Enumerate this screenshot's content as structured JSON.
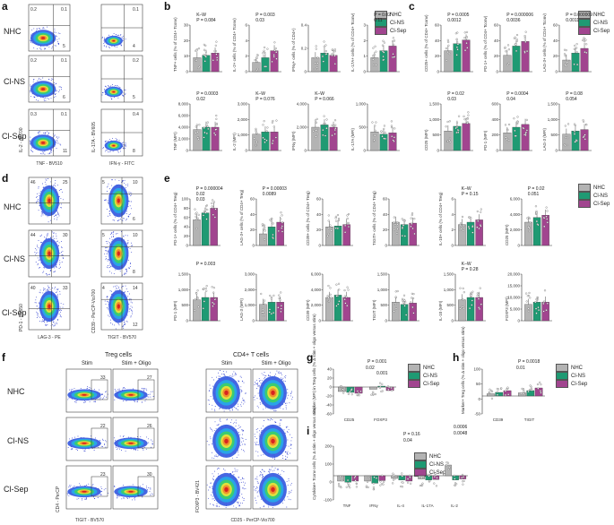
{
  "colors": {
    "nhc": "#b3b3b3",
    "clns": "#1f9a73",
    "clsep": "#a1458f"
  },
  "groups": [
    "NHC",
    "Cl-NS",
    "Cl-Sep"
  ],
  "panel_letters": [
    "a",
    "b",
    "c",
    "d",
    "e",
    "f",
    "g",
    "h",
    "i"
  ],
  "panel_a": {
    "rows": [
      "NHC",
      "Cl-NS",
      "Cl-Sep"
    ],
    "xlabel1": "TNF - BV510",
    "xlabel2": "IFN-γ - FITC",
    "ylabel1": "IL-2 - AF700",
    "ylabel2": "IL-17A - BV605",
    "quads": [
      [
        "0.2",
        "0.1",
        "5",
        "0.4"
      ],
      [
        "0.2",
        "0.1",
        "6",
        "0.1"
      ],
      [
        "0.3",
        "0.1",
        "11",
        "0.2"
      ]
    ],
    "quads2": [
      [
        "4",
        "0.1"
      ],
      [
        "5",
        "0.2"
      ],
      [
        "8",
        "0.4"
      ]
    ]
  },
  "panel_b": {
    "top": [
      {
        "ylabel": "TNF+ cells (% of CD4+ Tconv)",
        "stats": [
          "K–W",
          "P = 0.084"
        ],
        "ticks": [
          "30",
          "20",
          "10",
          "0"
        ]
      },
      {
        "ylabel": "IL-2+ cells (% of CD4+ Tconv)",
        "stats": [
          "P = 0.003",
          "0.03"
        ],
        "ticks": [
          "6",
          "4",
          "2",
          "0"
        ]
      },
      {
        "ylabel": "IFNγ+ cells (% of CD4+)",
        "stats": [],
        "ticks": [
          "0.4",
          "0.2",
          "0"
        ]
      },
      {
        "ylabel": "IL-17A+ cells (% of CD4+ Tconv)",
        "stats": [
          "P = 0.02",
          "0.11"
        ],
        "ticks": [
          "3",
          "2",
          "1",
          "0"
        ]
      }
    ],
    "bottom": [
      {
        "ylabel": "TNF (MFI)",
        "stats": [
          "P = 0.0003",
          "0.02"
        ],
        "ticks": [
          "8,000",
          "6,000",
          "4,000",
          "2,000",
          "0"
        ]
      },
      {
        "ylabel": "IL-2 (MFI)",
        "stats": [
          "K–W",
          "P = 0.076"
        ],
        "ticks": [
          "3,000",
          "2,000",
          "1,000",
          "0"
        ]
      },
      {
        "ylabel": "IFNγ (MFI)",
        "stats": [
          "K–W",
          "P = 0.066"
        ],
        "ticks": [
          "4,000",
          "2,000",
          "0"
        ]
      },
      {
        "ylabel": "IL-17A (MFI)",
        "stats": [],
        "ticks": [
          "1,000",
          "500",
          "0"
        ]
      }
    ]
  },
  "panel_c": {
    "top": [
      {
        "ylabel": "CD25+ cells (% of CD4+ Tconv)",
        "stats": [
          "P = 0.0005",
          "0.0012"
        ],
        "ticks": [
          "60",
          "40",
          "20",
          "0"
        ]
      },
      {
        "ylabel": "PD-1+ cells (% of CD4+ Tconv)",
        "stats": [
          "P = 0.000006",
          "0.0036"
        ],
        "ticks": [
          "60",
          "40",
          "20",
          "0"
        ]
      },
      {
        "ylabel": "LAG-3+ cells (% of CD4+ Tconv)",
        "stats": [
          "P = 0.000009",
          "0.0011"
        ],
        "ticks": [
          "60",
          "40",
          "20",
          "0"
        ]
      }
    ],
    "bottom": [
      {
        "ylabel": "CD25 (MFI)",
        "stats": [
          "P = 0.02",
          "0.03"
        ],
        "ticks": [
          "1,500",
          "1,000",
          "500",
          "0"
        ]
      },
      {
        "ylabel": "PD-1 (MFI)",
        "stats": [
          "P = 0.0004",
          "0.04"
        ],
        "ticks": [
          "600",
          "400",
          "200",
          "0"
        ]
      },
      {
        "ylabel": "LAG-3 (MFI)",
        "stats": [
          "P = 0.08",
          "0.054"
        ],
        "ticks": [
          "1,500",
          "1,000",
          "500",
          "0"
        ]
      }
    ]
  },
  "panel_d": {
    "rows": [
      "NHC",
      "Cl-NS",
      "Cl-Sep"
    ],
    "xlabel1": "LAG-3 - PE",
    "xlabel2": "TIGIT - BV570",
    "ylabel1": "PD-1 - BV650",
    "ylabel2": "CD39 - PerCP-Vio700",
    "quads": [
      [
        "46",
        "25"
      ],
      [
        "44",
        "30"
      ],
      [
        "40",
        "33"
      ]
    ],
    "quads2": [
      [
        "5",
        "10",
        "6"
      ],
      [
        "5",
        "10",
        "8"
      ],
      [
        "4",
        "14",
        "12"
      ]
    ]
  },
  "panel_e": {
    "top": [
      {
        "ylabel": "PD-1+ cells (% of CD4+ Treg)",
        "stats": [
          "P = 0.000004",
          "0.02",
          "0.03"
        ],
        "ticks": [
          "100",
          "80",
          "60",
          "40",
          "20",
          "0"
        ]
      },
      {
        "ylabel": "LAG-3+ cells (% of CD4+ Treg)",
        "stats": [
          "P = 0.00003",
          "0.0089"
        ],
        "ticks": [
          "60",
          "40",
          "20",
          "0"
        ]
      },
      {
        "ylabel": "CD39+ cells (% of CD4+ Treg)",
        "stats": [],
        "ticks": [
          "60",
          "40",
          "20",
          "0"
        ]
      },
      {
        "ylabel": "TIGIT+ cells (% of CD4+ Treg)",
        "stats": [],
        "ticks": [
          "60",
          "40",
          "20",
          "0"
        ]
      },
      {
        "ylabel": "IL-10+ cells (% of CD4+ Treg)",
        "stats": [
          "K–W",
          "P = 0.15"
        ],
        "ticks": [
          "6",
          "4",
          "2",
          "0"
        ]
      },
      {
        "ylabel": "CD25 (MFI)",
        "stats": [
          "P = 0.02",
          "0.051"
        ],
        "ticks": [
          "6,000",
          "4,000",
          "2,000",
          "0"
        ]
      }
    ],
    "bottom": [
      {
        "ylabel": "PD-1 (MFI)",
        "stats": [
          "P = 0.003"
        ],
        "ticks": [
          "1,500",
          "1,000",
          "500",
          "0"
        ]
      },
      {
        "ylabel": "LAG-3 (MFI)",
        "stats": [],
        "ticks": [
          "3,000",
          "2,000",
          "1,000",
          "0"
        ]
      },
      {
        "ylabel": "CD39 (MFI)",
        "stats": [],
        "ticks": [
          "6,000",
          "4,000",
          "2,000",
          "0"
        ]
      },
      {
        "ylabel": "TIGIT (MFI)",
        "stats": [],
        "ticks": [
          "1,500",
          "1,000",
          "500",
          "0"
        ]
      },
      {
        "ylabel": "IL-10 (MFI)",
        "stats": [
          "K–W",
          "P = 0.28"
        ],
        "ticks": [
          "1,500",
          "1,000",
          "500",
          "0"
        ]
      },
      {
        "ylabel": "FOXP3 (MFI)",
        "stats": [],
        "ticks": [
          "20,000",
          "15,000",
          "10,000",
          "5,000",
          "0"
        ]
      }
    ]
  },
  "panel_f": {
    "treg_title": "Treg cells",
    "cd4_title": "CD4+ T cells",
    "stim": "Stim",
    "stim_oligo": "Stim + Oligo",
    "rows": [
      "NHC",
      "Cl-NS",
      "Cl-Sep"
    ],
    "gates": [
      [
        "33",
        "27"
      ],
      [
        "22",
        "26"
      ],
      [
        "23",
        "30"
      ]
    ],
    "xlabel1": "TIGIT - BV570",
    "ylabel1": "CD4 - PerCP",
    "xlabel2": "CD25 - PerCP-Vio700",
    "ylabel2": "FOXP3 - BV421"
  },
  "panel_g": {
    "ylabel": "Marker (MFI) in Treg cells (% Δ stim + oligo versus stim)",
    "categories": [
      "CD25",
      "FOXP3"
    ],
    "stats": [
      "P = 0.001",
      "0.02",
      "0.001"
    ],
    "ticks": [
      "40",
      "20",
      "0",
      "-20",
      "-40",
      "-60"
    ]
  },
  "panel_h": {
    "ylabel": "Marker+ Treg cells (% Δ stim + oligo versus stim)",
    "categories": [
      "CD39",
      "TIGIT"
    ],
    "stats": [
      "P = 0.0018",
      "0.01"
    ],
    "ticks": [
      "100",
      "50",
      "0",
      "-50"
    ]
  },
  "panel_i": {
    "ylabel": "Cytokine+ Tconv cells (% Δ stim + oligo versus stim)",
    "categories": [
      "TNF",
      "IFNγ",
      "IL-4",
      "IL-17A",
      "IL-2"
    ],
    "stats_il4": [
      "P = 0.16",
      "0.04"
    ],
    "stats_il2": [
      "0.0006",
      "0.0048"
    ],
    "ticks": [
      "200",
      "100",
      "0",
      "-100"
    ]
  }
}
